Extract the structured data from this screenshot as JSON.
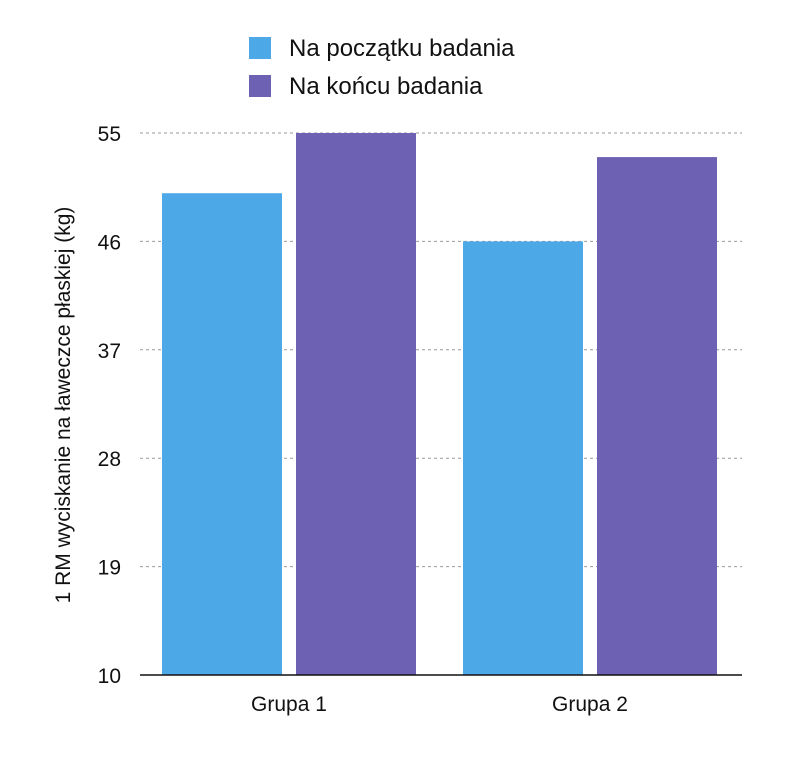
{
  "chart_data": {
    "type": "bar",
    "title": "",
    "xlabel": "",
    "ylabel": "1 RM wyciskanie na ławeczce płaskiej (kg)",
    "ylim": [
      10,
      55
    ],
    "yticks": [
      10,
      19,
      28,
      37,
      46,
      55
    ],
    "categories": [
      "Grupa 1",
      "Grupa 2"
    ],
    "series": [
      {
        "name": "Na początku badania",
        "color": "#4DA8E8",
        "values": [
          50,
          46
        ]
      },
      {
        "name": "Na końcu badania",
        "color": "#6C61B2",
        "values": [
          55,
          53
        ]
      }
    ],
    "grid": true,
    "legend_position": "top-center"
  }
}
